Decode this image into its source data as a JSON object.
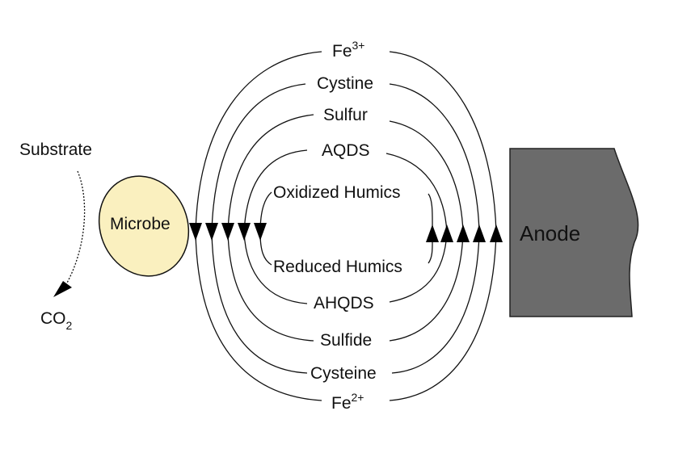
{
  "substrate": "Substrate",
  "co2": {
    "base": "CO",
    "sub": "2"
  },
  "microbe": {
    "label": "Microbe",
    "fill": "#faf0bf"
  },
  "anode": {
    "label": "Anode",
    "fill": "#6b6b6b",
    "text_color": "#ffffff"
  },
  "oxidized": {
    "fe3": {
      "base": "Fe",
      "sup": "3+"
    },
    "cystine": "Cystine",
    "sulfur": "Sulfur",
    "aqds": "AQDS",
    "oxidized_humics": "Oxidized Humics"
  },
  "reduced": {
    "reduced_humics": "Reduced Humics",
    "ahqds": "AHQDS",
    "sulfide": "Sulfide",
    "cysteine": "Cysteine",
    "fe2": {
      "base": "Fe",
      "sup": "2+"
    }
  },
  "colors": {
    "stroke": "#111111"
  }
}
